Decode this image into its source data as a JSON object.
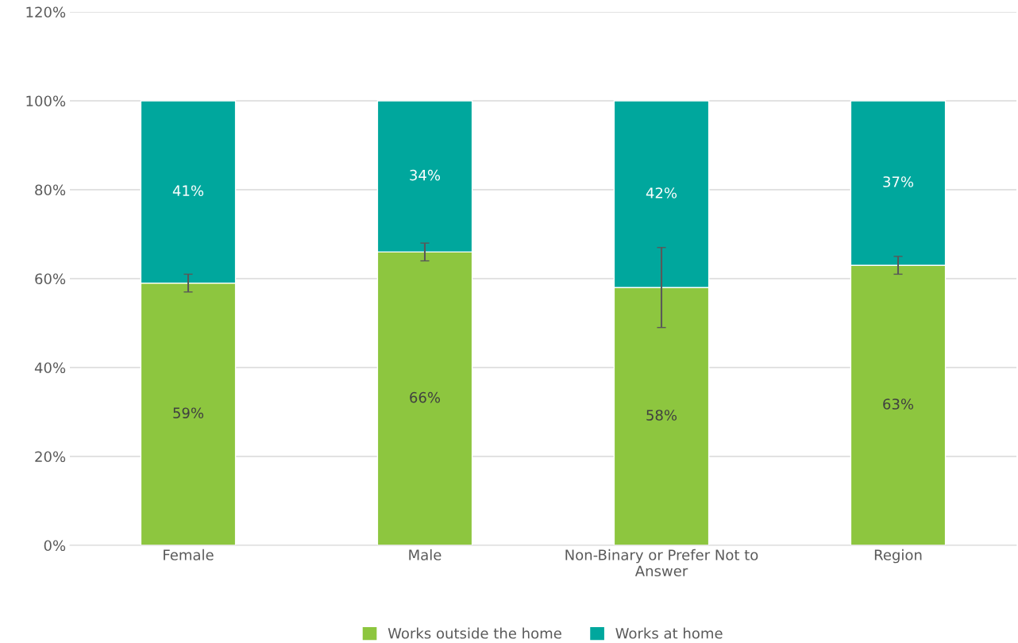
{
  "chart_data": {
    "type": "bar",
    "stacked": true,
    "categories": [
      "Female",
      "Male",
      "Non-Binary or Prefer Not to\nAnswer",
      "Region"
    ],
    "series": [
      {
        "name": "Works outside the home",
        "color": "#8dc63f",
        "values": [
          59,
          66,
          58,
          63
        ],
        "value_labels": [
          "59%",
          "66%",
          "58%",
          "63%"
        ],
        "errors": [
          2,
          2,
          9,
          2
        ]
      },
      {
        "name": "Works at home",
        "color": "#00a79d",
        "values": [
          41,
          34,
          42,
          37
        ],
        "value_labels": [
          "41%",
          "34%",
          "42%",
          "37%"
        ]
      }
    ],
    "ylim": [
      0,
      120
    ],
    "yticks": [
      {
        "value": 0,
        "label": "0%"
      },
      {
        "value": 20,
        "label": "20%"
      },
      {
        "value": 40,
        "label": "40%"
      },
      {
        "value": 60,
        "label": "60%"
      },
      {
        "value": 80,
        "label": "80%"
      },
      {
        "value": 100,
        "label": "100%"
      },
      {
        "value": 120,
        "label": "120%"
      }
    ],
    "grid": "y",
    "legend": "bottom"
  }
}
